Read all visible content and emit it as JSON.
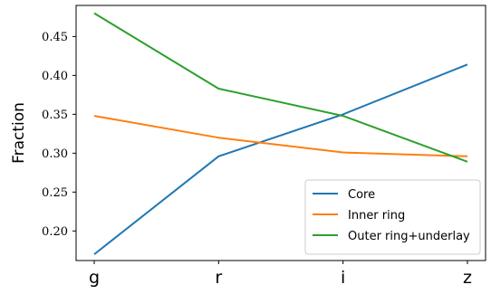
{
  "chart_data": {
    "type": "line",
    "title": "",
    "xlabel": "",
    "ylabel": "Fraction",
    "categories": [
      "g",
      "r",
      "i",
      "z"
    ],
    "ylim": [
      0.162,
      0.49
    ],
    "yticks": [
      0.2,
      0.25,
      0.3,
      0.35,
      0.4,
      0.45
    ],
    "ytick_labels": [
      "0.20",
      "0.25",
      "0.30",
      "0.35",
      "0.40",
      "0.45"
    ],
    "grid": false,
    "legend_position": "lower right",
    "series": [
      {
        "name": "Core",
        "color": "#1f77b4",
        "values": [
          0.17,
          0.296,
          0.35,
          0.414
        ]
      },
      {
        "name": "Inner ring",
        "color": "#ff7f0e",
        "values": [
          0.348,
          0.32,
          0.301,
          0.296
        ]
      },
      {
        "name": "Outer ring+underlay",
        "color": "#2ca02c",
        "values": [
          0.48,
          0.383,
          0.348,
          0.289
        ]
      }
    ]
  }
}
